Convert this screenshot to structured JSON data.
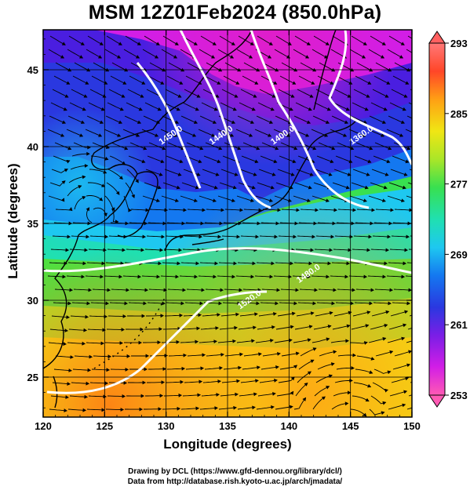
{
  "title": "MSM 12Z01Feb2024 (850.0hPa)",
  "axes": {
    "xlabel": "Longitude (degrees)",
    "ylabel": "Latitude  (degrees)",
    "xlim": [
      120,
      150
    ],
    "ylim": [
      22.4,
      47.6
    ],
    "xticks": [
      {
        "value": 120,
        "label": "120"
      },
      {
        "value": 125,
        "label": "125"
      },
      {
        "value": 130,
        "label": "130"
      },
      {
        "value": 135,
        "label": "135"
      },
      {
        "value": 140,
        "label": "140"
      },
      {
        "value": 145,
        "label": "145"
      },
      {
        "value": 150,
        "label": "150"
      }
    ],
    "yticks": [
      {
        "value": 25,
        "label": "25"
      },
      {
        "value": 30,
        "label": "30"
      },
      {
        "value": 35,
        "label": "35"
      },
      {
        "value": 40,
        "label": "40"
      },
      {
        "value": 45,
        "label": "45"
      }
    ]
  },
  "colorbar": {
    "min": 253,
    "max": 293,
    "labels": [
      "253",
      "261",
      "269",
      "277",
      "285",
      "293"
    ],
    "colors": [
      "#ff5ab4",
      "#d21ee6",
      "#7a1ee6",
      "#2a38e0",
      "#1478f0",
      "#1ec8f0",
      "#20e0b0",
      "#38e050",
      "#aae628",
      "#f0e614",
      "#ffa014",
      "#ff4628",
      "#ff7878"
    ]
  },
  "contours": [
    {
      "label": "1360.0",
      "label_lon": 146.0,
      "label_lat": 40.6
    },
    {
      "label": "1400.0",
      "label_lon": 139.6,
      "label_lat": 40.6
    },
    {
      "label": "1440.0",
      "label_lon": 134.6,
      "label_lat": 40.6
    },
    {
      "label": "1450.0",
      "label_lon": 130.5,
      "label_lat": 40.6
    },
    {
      "label": "1480.0",
      "label_lon": 141.7,
      "label_lat": 31.6
    },
    {
      "label": "1520.0",
      "label_lon": 136.9,
      "label_lat": 29.9
    }
  ],
  "credits": {
    "line1": "Drawing by DCL (https://www.gfd-dennou.org/library/dcl/)",
    "line2": "Data from http://database.rish.kyoto-u.ac.jp/arch/jmadata/"
  }
}
